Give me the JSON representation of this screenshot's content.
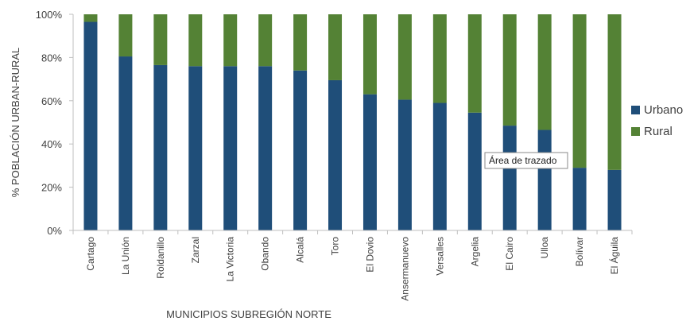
{
  "chart_data": {
    "type": "bar",
    "stacked": true,
    "normalized_percent": true,
    "xlabel": "MUNICIPIOS SUBREGIÓN NORTE",
    "ylabel": "% POBLACIÓN URBAN-RURAL",
    "ylim": [
      0,
      100
    ],
    "yticks": [
      "0%",
      "20%",
      "40%",
      "60%",
      "80%",
      "100%"
    ],
    "yticks_values": [
      0,
      20,
      40,
      60,
      80,
      100
    ],
    "grid": false,
    "legend_position": "right",
    "categories": [
      "Cartago",
      "La Unión",
      "Roldanillo",
      "Zarzal",
      "La Victoria",
      "Obando",
      "Alcalá",
      "Toro",
      "El Dovio",
      "Ansermanuevo",
      "Versalles",
      "Argelia",
      "El Cairo",
      "Ulloa",
      "Bolívar",
      "El Águila"
    ],
    "series": [
      {
        "name": "Urbano",
        "color": "#1f4e79",
        "values": [
          96.5,
          80.5,
          76.5,
          76,
          76,
          76,
          74,
          69.5,
          63,
          60.5,
          59,
          54.5,
          48.5,
          46.5,
          29,
          28
        ]
      },
      {
        "name": "Rural",
        "color": "#548235",
        "values": [
          3.5,
          19.5,
          23.5,
          24,
          24,
          24,
          26,
          30.5,
          37,
          39.5,
          41,
          45.5,
          51.5,
          53.5,
          71,
          72
        ]
      }
    ],
    "tooltip": "Área de trazado"
  }
}
